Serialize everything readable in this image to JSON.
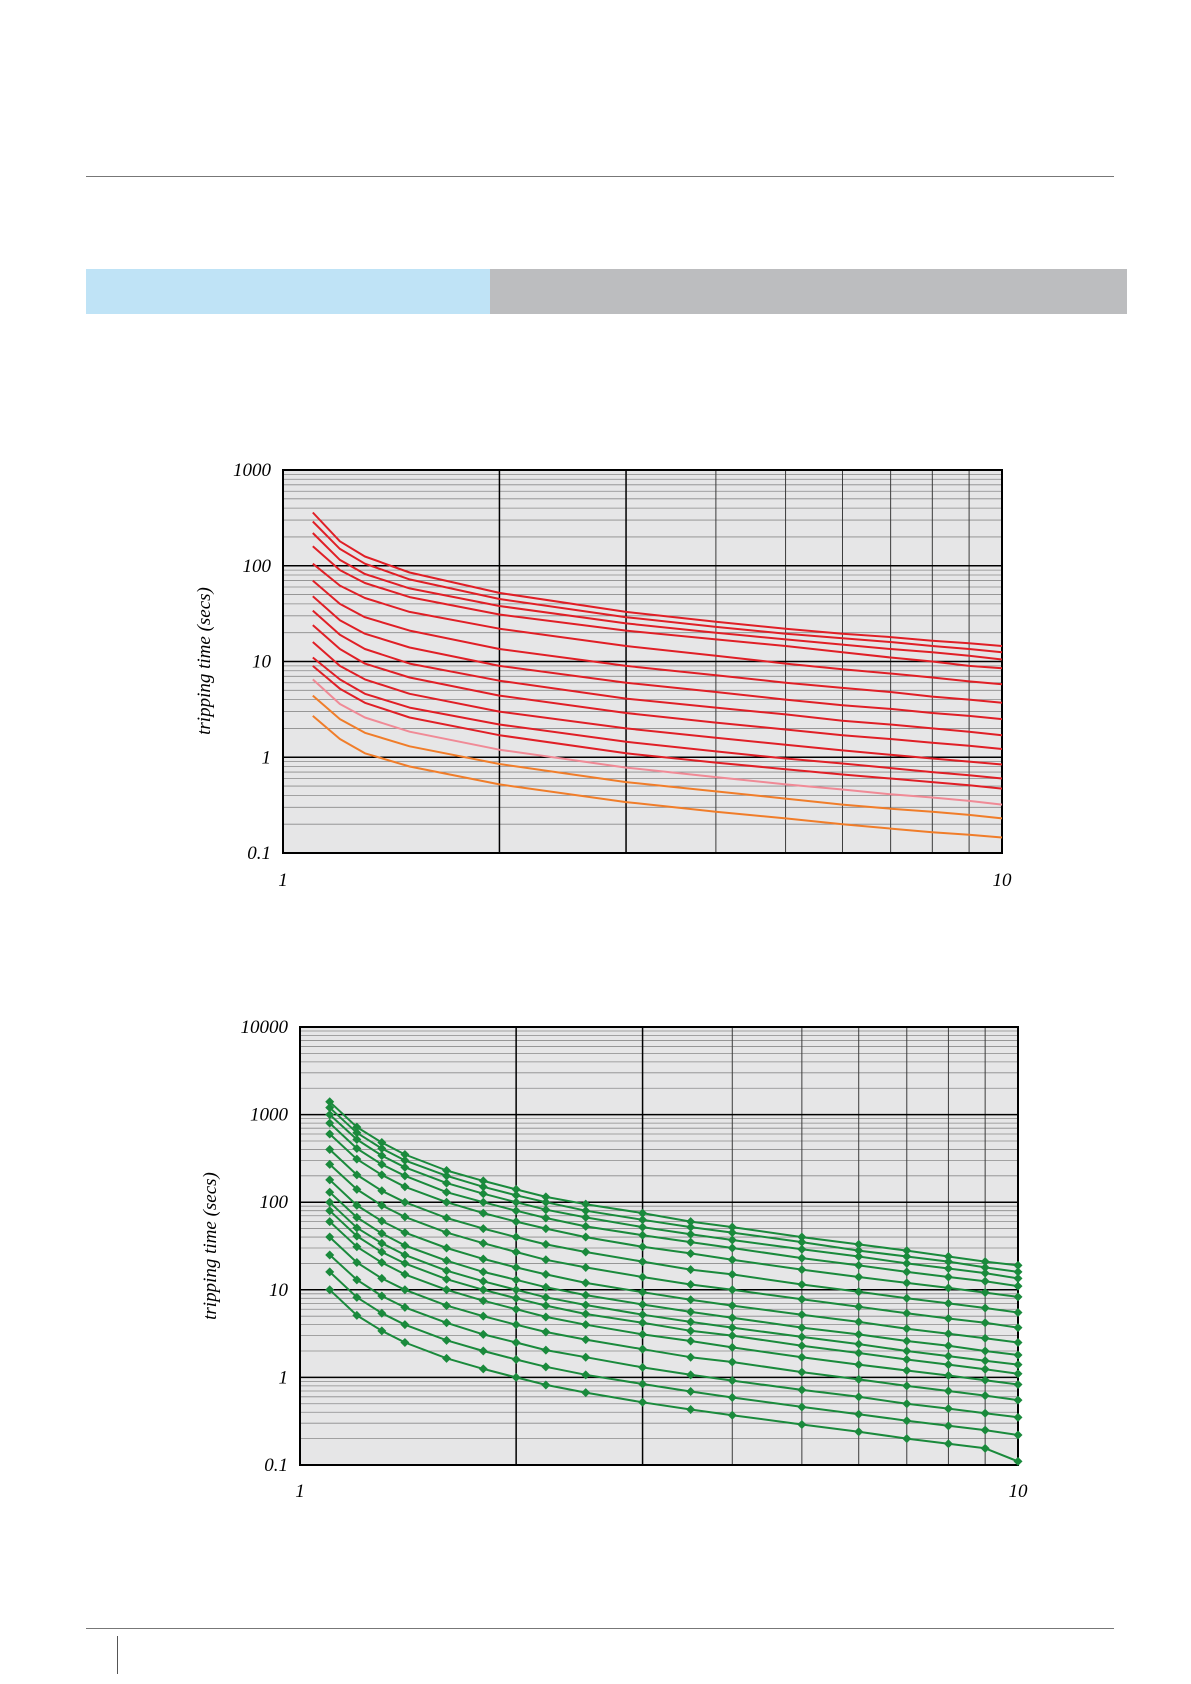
{
  "header": {
    "band_left_text": "",
    "band_right_text": ""
  },
  "colors": {
    "band_left": "#bfe3f6",
    "band_right": "#bcbdbf",
    "plot_bg": "#e6e6e7",
    "grid_minor": "#8a8a8a",
    "grid_major": "#000000"
  },
  "chart_data": [
    {
      "type": "line",
      "ylabel": "tripping time (secs)",
      "xscale": "log",
      "yscale": "log",
      "xlim": [
        1,
        10
      ],
      "ylim": [
        0.1,
        1000
      ],
      "x_tick_labels": [
        "1",
        "10"
      ],
      "y_tick_labels": [
        "1000",
        "100",
        "10",
        "1",
        "0.1"
      ],
      "grid": true,
      "markers": false,
      "x": [
        1.1,
        1.2,
        1.3,
        1.5,
        2,
        3,
        4,
        5,
        6,
        7,
        8,
        9,
        10
      ],
      "series": [
        {
          "color": "#e01f26",
          "values": [
            360,
            180,
            125,
            85,
            52,
            33,
            26,
            22,
            19.5,
            18,
            16.5,
            15.5,
            14.5
          ]
        },
        {
          "color": "#e01f26",
          "values": [
            290,
            150,
            105,
            72,
            45,
            29,
            23,
            19.5,
            17.5,
            16,
            14.5,
            13.5,
            12.5
          ]
        },
        {
          "color": "#e01f26",
          "values": [
            220,
            115,
            82,
            58,
            38,
            25,
            20,
            17,
            15,
            13.5,
            12.5,
            11.5,
            10.5
          ]
        },
        {
          "color": "#e01f26",
          "values": [
            160,
            90,
            66,
            47,
            31,
            21,
            17,
            14.5,
            12.5,
            11,
            10,
            9,
            8.5
          ]
        },
        {
          "color": "#e01f26",
          "values": [
            105,
            62,
            46,
            33,
            22,
            14.5,
            11.5,
            9.5,
            8.3,
            7.5,
            6.8,
            6.2,
            5.8
          ]
        },
        {
          "color": "#e01f26",
          "values": [
            70,
            40,
            29,
            21,
            13.5,
            9,
            7.2,
            6,
            5.3,
            4.8,
            4.3,
            4,
            3.7
          ]
        },
        {
          "color": "#e01f26",
          "values": [
            48,
            27,
            19.5,
            14,
            9,
            6,
            4.8,
            4,
            3.5,
            3.2,
            2.9,
            2.7,
            2.5
          ]
        },
        {
          "color": "#e01f26",
          "values": [
            34,
            19,
            13.5,
            9.5,
            6.3,
            4.1,
            3.3,
            2.8,
            2.4,
            2.2,
            2,
            1.85,
            1.7
          ]
        },
        {
          "color": "#e01f26",
          "values": [
            24,
            13.5,
            9.5,
            6.8,
            4.4,
            2.9,
            2.3,
            1.95,
            1.7,
            1.55,
            1.42,
            1.32,
            1.22
          ]
        },
        {
          "color": "#e01f26",
          "values": [
            16,
            9,
            6.5,
            4.6,
            3,
            2,
            1.6,
            1.35,
            1.18,
            1.06,
            0.97,
            0.9,
            0.84
          ]
        },
        {
          "color": "#e01f26",
          "values": [
            11,
            6.5,
            4.6,
            3.3,
            2.2,
            1.45,
            1.15,
            0.97,
            0.86,
            0.77,
            0.7,
            0.65,
            0.6
          ]
        },
        {
          "color": "#e01f26",
          "values": [
            9,
            5.2,
            3.7,
            2.6,
            1.7,
            1.1,
            0.88,
            0.75,
            0.66,
            0.6,
            0.55,
            0.51,
            0.47
          ]
        },
        {
          "color": "#f08a96",
          "values": [
            6.5,
            3.6,
            2.6,
            1.85,
            1.2,
            0.78,
            0.62,
            0.52,
            0.46,
            0.41,
            0.38,
            0.35,
            0.32
          ]
        },
        {
          "color": "#f07d2a",
          "values": [
            4.4,
            2.5,
            1.8,
            1.3,
            0.85,
            0.55,
            0.44,
            0.37,
            0.32,
            0.29,
            0.27,
            0.25,
            0.23
          ]
        },
        {
          "color": "#f07d2a",
          "values": [
            2.7,
            1.55,
            1.1,
            0.8,
            0.52,
            0.34,
            0.27,
            0.23,
            0.2,
            0.18,
            0.165,
            0.155,
            0.145
          ]
        }
      ]
    },
    {
      "type": "line",
      "ylabel": "tripping time (secs)",
      "xscale": "log",
      "yscale": "log",
      "xlim": [
        1,
        10
      ],
      "ylim": [
        0.1,
        10000
      ],
      "x_tick_labels": [
        "1",
        "10"
      ],
      "y_tick_labels": [
        "10000",
        "1000",
        "100",
        "10",
        "1",
        "0.1"
      ],
      "grid": true,
      "markers": true,
      "x": [
        1.1,
        1.2,
        1.3,
        1.4,
        1.6,
        1.8,
        2,
        2.2,
        2.5,
        3,
        3.5,
        4,
        5,
        6,
        7,
        8,
        9,
        10
      ],
      "series": [
        {
          "color": "#1a8a3c",
          "values": [
            1400,
            720,
            480,
            350,
            230,
            175,
            140,
            115,
            95,
            75,
            60,
            52,
            40,
            33,
            28,
            24,
            21,
            19
          ]
        },
        {
          "color": "#1a8a3c",
          "values": [
            1200,
            620,
            410,
            300,
            200,
            150,
            120,
            100,
            80,
            63,
            52,
            45,
            35,
            28,
            24,
            21,
            18,
            16
          ]
        },
        {
          "color": "#1a8a3c",
          "values": [
            1000,
            520,
            340,
            250,
            165,
            125,
            100,
            82,
            67,
            52,
            43,
            37,
            29,
            24,
            20,
            17.5,
            15.5,
            13.5
          ]
        },
        {
          "color": "#1a8a3c",
          "values": [
            800,
            410,
            270,
            200,
            130,
            100,
            80,
            66,
            53,
            42,
            35,
            30,
            23,
            19,
            16,
            14,
            12.5,
            11
          ]
        },
        {
          "color": "#1a8a3c",
          "values": [
            600,
            310,
            205,
            150,
            100,
            75,
            60,
            50,
            40,
            31,
            26,
            22,
            17,
            14,
            12,
            10.5,
            9.3,
            8.3
          ]
        },
        {
          "color": "#1a8a3c",
          "values": [
            400,
            205,
            135,
            100,
            66,
            50,
            40,
            33,
            27,
            21,
            17,
            15,
            11.5,
            9.5,
            8,
            7,
            6.2,
            5.5
          ]
        },
        {
          "color": "#1a8a3c",
          "values": [
            270,
            140,
            92,
            68,
            45,
            34,
            27,
            22,
            18,
            14,
            11.5,
            10,
            7.8,
            6.4,
            5.4,
            4.7,
            4.2,
            3.7
          ]
        },
        {
          "color": "#1a8a3c",
          "values": [
            180,
            92,
            61,
            45,
            30,
            22.5,
            18,
            15,
            12,
            9.4,
            7.7,
            6.6,
            5.2,
            4.3,
            3.6,
            3.15,
            2.8,
            2.5
          ]
        },
        {
          "color": "#1a8a3c",
          "values": [
            130,
            67,
            44,
            32,
            21.5,
            16,
            13,
            10.7,
            8.7,
            6.8,
            5.6,
            4.8,
            3.7,
            3.1,
            2.6,
            2.3,
            2,
            1.8
          ]
        },
        {
          "color": "#1a8a3c",
          "values": [
            100,
            51,
            34,
            25,
            16.5,
            12.5,
            10,
            8.2,
            6.7,
            5.2,
            4.3,
            3.7,
            2.9,
            2.4,
            2,
            1.75,
            1.55,
            1.4
          ]
        },
        {
          "color": "#1a8a3c",
          "values": [
            80,
            41,
            27,
            20,
            13.2,
            10,
            8,
            6.6,
            5.3,
            4.2,
            3.4,
            3,
            2.3,
            1.9,
            1.6,
            1.4,
            1.24,
            1.1
          ]
        },
        {
          "color": "#1a8a3c",
          "values": [
            60,
            31,
            20.5,
            15,
            10,
            7.5,
            6,
            4.9,
            4,
            3.1,
            2.6,
            2.2,
            1.7,
            1.4,
            1.2,
            1.05,
            0.93,
            0.83
          ]
        },
        {
          "color": "#1a8a3c",
          "values": [
            40,
            20.5,
            13.5,
            10,
            6.6,
            5,
            4,
            3.3,
            2.7,
            2.1,
            1.7,
            1.5,
            1.15,
            0.95,
            0.8,
            0.7,
            0.62,
            0.55
          ]
        },
        {
          "color": "#1a8a3c",
          "values": [
            25,
            13,
            8.5,
            6.3,
            4.2,
            3.1,
            2.5,
            2.05,
            1.7,
            1.3,
            1.07,
            0.92,
            0.72,
            0.6,
            0.5,
            0.44,
            0.39,
            0.35
          ]
        },
        {
          "color": "#1a8a3c",
          "values": [
            16,
            8.2,
            5.4,
            4,
            2.65,
            2,
            1.6,
            1.32,
            1.07,
            0.84,
            0.69,
            0.59,
            0.46,
            0.38,
            0.32,
            0.28,
            0.25,
            0.22
          ]
        },
        {
          "color": "#1a8a3c",
          "values": [
            10,
            5.1,
            3.4,
            2.5,
            1.65,
            1.25,
            1,
            0.82,
            0.67,
            0.52,
            0.43,
            0.37,
            0.29,
            0.24,
            0.2,
            0.175,
            0.155,
            0.11
          ]
        }
      ]
    }
  ]
}
